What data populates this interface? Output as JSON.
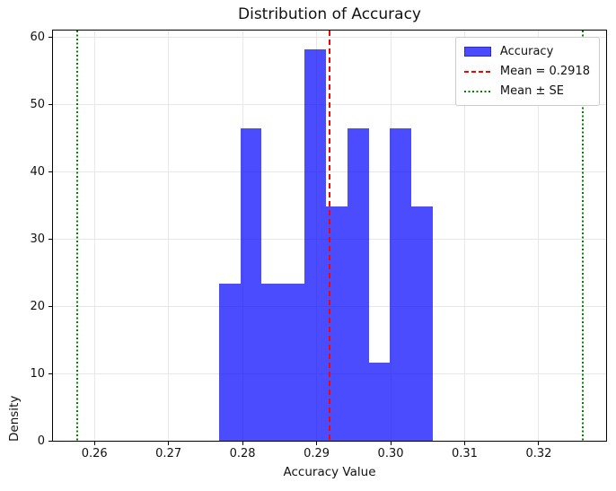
{
  "figure": {
    "title": "Distribution of Accuracy",
    "xlabel": "Accuracy Value",
    "ylabel": "Density"
  },
  "chart_data": {
    "type": "bar",
    "subtype": "histogram",
    "title": "Distribution of Accuracy",
    "xlabel": "Accuracy Value",
    "ylabel": "Density",
    "bin_start": 0.2768,
    "bin_width": 0.00289,
    "densities": [
      23.3,
      46.5,
      23.3,
      23.3,
      58.2,
      34.9,
      46.5,
      11.6,
      46.5,
      34.9
    ],
    "xlim": [
      0.2544,
      0.3291
    ],
    "ylim": [
      0,
      61.0
    ],
    "xticks": [
      0.26,
      0.27,
      0.28,
      0.29,
      0.3,
      0.31,
      0.32
    ],
    "xtick_labels": [
      "0.26",
      "0.27",
      "0.28",
      "0.29",
      "0.30",
      "0.31",
      "0.32"
    ],
    "yticks": [
      0,
      10,
      20,
      30,
      40,
      50,
      60
    ],
    "ytick_labels": [
      "0",
      "10",
      "20",
      "30",
      "40",
      "50",
      "60"
    ],
    "grid": true,
    "mean": 0.2918,
    "vlines": [
      {
        "x": 0.2918,
        "style": "dashed",
        "color": "#ff0000",
        "width": 2,
        "name": "mean-line"
      },
      {
        "x": 0.2577,
        "style": "dotted",
        "color": "#008000",
        "width": 2,
        "name": "mean-minus-se-line"
      },
      {
        "x": 0.3259,
        "style": "dotted",
        "color": "#008000",
        "width": 2,
        "name": "mean-plus-se-line"
      }
    ],
    "legend": {
      "position": "upper right",
      "items": [
        {
          "label": "Accuracy",
          "swatch": "patch",
          "color": "#4C4CFF"
        },
        {
          "label": "Mean = 0.2918",
          "swatch": "dashed-line",
          "color": "#ff0000"
        },
        {
          "label": "Mean ± SE",
          "swatch": "dotted-line",
          "color": "#008000"
        }
      ]
    },
    "colors": {
      "bar_fill": "rgba(0,0,255,0.7)",
      "mean_line": "#ff0000",
      "se_line": "#008000",
      "grid": "#e7e7e7",
      "spine": "#000000"
    }
  }
}
